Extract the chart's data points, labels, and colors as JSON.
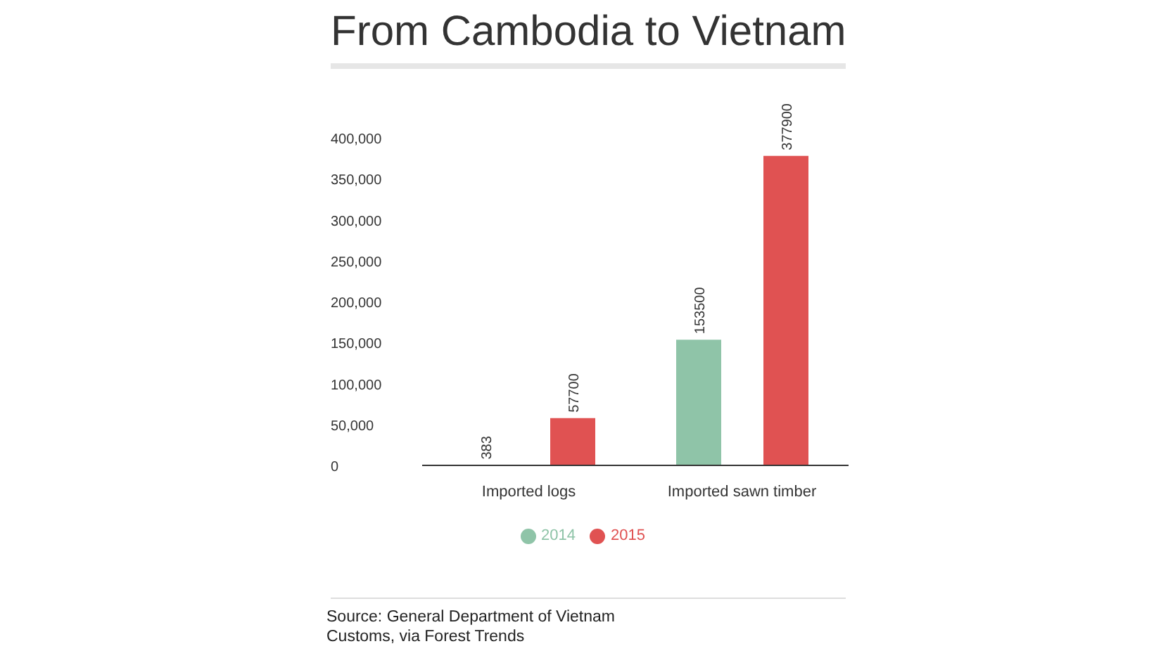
{
  "chart_data": {
    "type": "bar",
    "title": "From Cambodia to Vietnam",
    "categories": [
      "Imported logs",
      "Imported sawn timber"
    ],
    "series": [
      {
        "name": "2014",
        "color": "#8fc4a8",
        "values": [
          383,
          153500
        ]
      },
      {
        "name": "2015",
        "color": "#e05252",
        "values": [
          57700,
          377900
        ]
      }
    ],
    "ylim": [
      0,
      400000
    ],
    "yticks": [
      {
        "value": 0,
        "label": "0"
      },
      {
        "value": 50000,
        "label": "50,000"
      },
      {
        "value": 100000,
        "label": "100,000"
      },
      {
        "value": 150000,
        "label": "150,000"
      },
      {
        "value": 200000,
        "label": "200,000"
      },
      {
        "value": 250000,
        "label": "250,000"
      },
      {
        "value": 300000,
        "label": "300,000"
      },
      {
        "value": 350000,
        "label": "350,000"
      },
      {
        "value": 400000,
        "label": "400,000"
      }
    ],
    "grid": false,
    "legend": "bottom",
    "data_labels": true,
    "annotations": [
      "Source: General Department of Vietnam Customs, via Forest Trends"
    ]
  }
}
